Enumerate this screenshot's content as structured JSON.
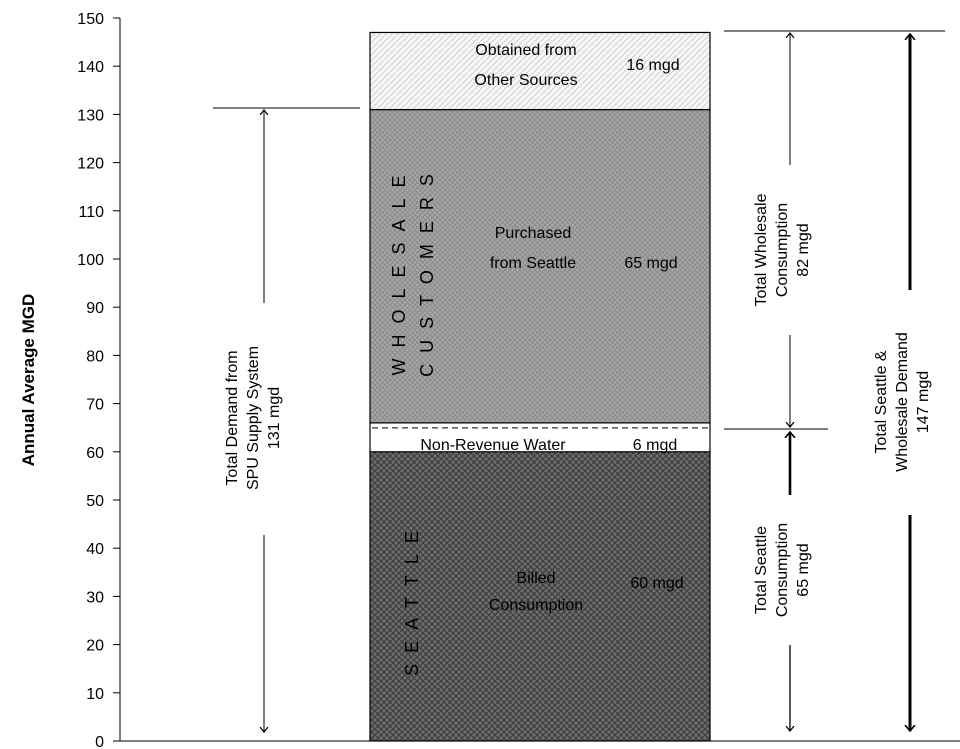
{
  "chart_data": {
    "type": "bar",
    "ylabel": "Annual Average MGD",
    "ylim": [
      0,
      150
    ],
    "yticks": [
      0,
      10,
      20,
      30,
      40,
      50,
      60,
      70,
      80,
      90,
      100,
      110,
      120,
      130,
      140,
      150
    ],
    "grid": false,
    "segments": [
      {
        "name": "Billed Consumption",
        "value": 60,
        "label_lines": [
          "Billed",
          "Consumption"
        ],
        "value_label": "60 mgd",
        "color": "#555555"
      },
      {
        "name": "Non-Revenue Water",
        "value": 6,
        "label_lines": [
          "Non-Revenue Water"
        ],
        "value_label": "6 mgd",
        "color": "#ffffff"
      },
      {
        "name": "Purchased from Seattle",
        "value": 65,
        "label_lines": [
          "Purchased",
          "from Seattle"
        ],
        "value_label": "65 mgd",
        "color": "#9a9a9a"
      },
      {
        "name": "Obtained from Other Sources",
        "value": 16,
        "label_lines": [
          "Obtained from",
          "Other Sources"
        ],
        "value_label": "16 mgd",
        "color": "#f4f4f4"
      }
    ],
    "vertical_labels": [
      {
        "lines": [
          "WHOLESALE",
          "CUSTOMERS"
        ]
      },
      {
        "lines": [
          "SEATTLE"
        ]
      }
    ],
    "annotations": [
      {
        "name": "total-demand-spu",
        "from": 0,
        "to": 131,
        "lines": [
          "Total Demand from",
          "SPU Supply System",
          "131 mgd"
        ],
        "bold": false
      },
      {
        "name": "total-wholesale-consumption",
        "from": 65,
        "to": 147,
        "lines": [
          "Total Wholesale",
          "Consumption",
          "82 mgd"
        ],
        "bold": false
      },
      {
        "name": "total-seattle-consumption",
        "from": 0,
        "to": 65,
        "lines": [
          "Total Seattle",
          "Consumption",
          "65 mgd"
        ],
        "bold": true
      },
      {
        "name": "total-seattle-wholesale-demand",
        "from": 0,
        "to": 147,
        "lines": [
          "Total Seattle &",
          "Wholesale Demand",
          "147 mgd"
        ],
        "bold": true
      }
    ]
  }
}
